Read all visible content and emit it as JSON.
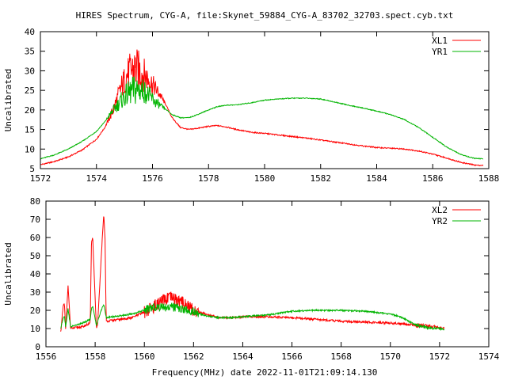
{
  "title": "HIRES Spectrum, CYG-A, file:Skynet_59884_CYG-A_83702_32703.spect.cyb.txt",
  "footer": "Frequency(MHz) date 2022-11-01T21:09:14.130",
  "colors": {
    "red": "#ff0000",
    "green": "#00b400"
  },
  "chart_data": [
    {
      "type": "line",
      "title": "",
      "xlabel": "",
      "ylabel": "Uncalibrated",
      "xlim": [
        1572,
        1588
      ],
      "ylim": [
        5,
        40
      ],
      "xticks": [
        1572,
        1574,
        1576,
        1578,
        1580,
        1582,
        1584,
        1586,
        1588
      ],
      "yticks": [
        5,
        10,
        15,
        20,
        25,
        30,
        35,
        40
      ],
      "legend": "top-right",
      "grid": false,
      "series": [
        {
          "name": "XL1",
          "color": "#ff0000",
          "x": [
            1572.0,
            1572.5,
            1573.0,
            1573.5,
            1574.0,
            1574.3,
            1574.6,
            1574.9,
            1575.1,
            1575.3,
            1575.5,
            1575.7,
            1575.9,
            1576.1,
            1576.3,
            1576.5,
            1576.7,
            1577.0,
            1577.3,
            1577.6,
            1578.0,
            1578.3,
            1578.6,
            1579.0,
            1579.5,
            1580.0,
            1580.5,
            1581.0,
            1581.5,
            1582.0,
            1582.5,
            1583.0,
            1583.5,
            1584.0,
            1584.5,
            1585.0,
            1585.5,
            1586.0,
            1586.5,
            1587.0,
            1587.5,
            1587.8
          ],
          "values": [
            6.0,
            6.8,
            8.0,
            9.8,
            12.5,
            15.5,
            20.0,
            26.0,
            29.0,
            30.5,
            30.0,
            29.0,
            27.5,
            25.5,
            23.5,
            21.0,
            18.0,
            15.5,
            15.0,
            15.3,
            15.8,
            16.0,
            15.7,
            15.0,
            14.3,
            14.0,
            13.6,
            13.2,
            12.8,
            12.3,
            11.8,
            11.3,
            10.8,
            10.4,
            10.2,
            10.0,
            9.5,
            8.7,
            7.7,
            6.6,
            5.9,
            5.8
          ]
        },
        {
          "name": "YR1",
          "color": "#00b400",
          "x": [
            1572.0,
            1572.5,
            1573.0,
            1573.5,
            1574.0,
            1574.3,
            1574.6,
            1574.9,
            1575.1,
            1575.3,
            1575.5,
            1575.7,
            1575.9,
            1576.1,
            1576.3,
            1576.5,
            1576.7,
            1577.0,
            1577.3,
            1577.6,
            1578.0,
            1578.3,
            1578.6,
            1579.0,
            1579.5,
            1580.0,
            1580.5,
            1581.0,
            1581.5,
            1582.0,
            1582.5,
            1583.0,
            1583.5,
            1584.0,
            1584.5,
            1585.0,
            1585.5,
            1586.0,
            1586.5,
            1587.0,
            1587.5,
            1587.8
          ],
          "values": [
            7.5,
            8.5,
            10.0,
            12.0,
            14.5,
            17.0,
            20.0,
            22.5,
            24.0,
            25.0,
            25.2,
            24.8,
            23.5,
            22.0,
            21.0,
            20.0,
            18.8,
            18.0,
            18.0,
            18.8,
            20.0,
            20.8,
            21.2,
            21.3,
            21.8,
            22.5,
            22.8,
            23.0,
            23.0,
            22.8,
            22.0,
            21.2,
            20.5,
            19.7,
            18.8,
            17.5,
            15.5,
            13.0,
            10.5,
            8.6,
            7.6,
            7.5
          ]
        }
      ]
    },
    {
      "type": "line",
      "title": "",
      "xlabel": "",
      "ylabel": "Uncalibrated",
      "xlim": [
        1556,
        1574
      ],
      "ylim": [
        0,
        80
      ],
      "xticks": [
        1556,
        1558,
        1560,
        1562,
        1564,
        1566,
        1568,
        1570,
        1572,
        1574
      ],
      "yticks": [
        0,
        10,
        20,
        30,
        40,
        50,
        60,
        70,
        80
      ],
      "legend": "top-right",
      "grid": false,
      "series": [
        {
          "name": "XL2",
          "color": "#ff0000",
          "x": [
            1556.6,
            1556.7,
            1556.75,
            1556.8,
            1556.9,
            1557.0,
            1557.5,
            1557.8,
            1557.85,
            1557.9,
            1558.05,
            1558.1,
            1558.3,
            1558.35,
            1558.4,
            1558.45,
            1559.0,
            1559.5,
            1560.0,
            1560.5,
            1561.0,
            1561.3,
            1561.6,
            1562.0,
            1562.5,
            1563.0,
            1563.5,
            1564.0,
            1565.0,
            1566.0,
            1567.0,
            1568.0,
            1569.0,
            1570.0,
            1570.5,
            1571.0,
            1571.5,
            1572.0,
            1572.2
          ],
          "values": [
            8,
            22,
            24,
            9,
            34,
            10,
            11,
            13,
            58,
            60,
            10,
            12,
            62,
            73,
            60,
            14,
            15,
            16,
            19,
            23,
            27,
            26,
            24,
            20,
            18,
            16,
            16,
            16.5,
            16.5,
            16,
            15,
            14,
            13.5,
            13,
            12.5,
            12,
            11,
            10.5,
            10
          ]
        },
        {
          "name": "YR2",
          "color": "#00b400",
          "x": [
            1556.6,
            1556.7,
            1556.75,
            1556.8,
            1556.9,
            1557.0,
            1557.5,
            1557.8,
            1557.85,
            1557.9,
            1558.05,
            1558.1,
            1558.3,
            1558.35,
            1558.4,
            1558.45,
            1559.0,
            1559.5,
            1560.0,
            1560.5,
            1561.0,
            1561.3,
            1561.6,
            1562.0,
            1562.5,
            1563.0,
            1563.5,
            1564.0,
            1565.0,
            1566.0,
            1567.0,
            1568.0,
            1569.0,
            1570.0,
            1570.5,
            1571.0,
            1571.5,
            1572.0,
            1572.2
          ],
          "values": [
            10,
            16,
            17,
            11,
            21,
            11,
            13,
            15,
            21,
            22,
            12,
            14,
            22,
            23,
            20,
            16,
            17,
            18,
            20,
            22,
            22,
            21.5,
            20.5,
            19,
            17,
            16,
            16,
            16.5,
            17.5,
            19.5,
            20,
            20,
            19.5,
            18,
            16,
            12,
            10.5,
            10,
            9.5
          ]
        }
      ]
    }
  ]
}
